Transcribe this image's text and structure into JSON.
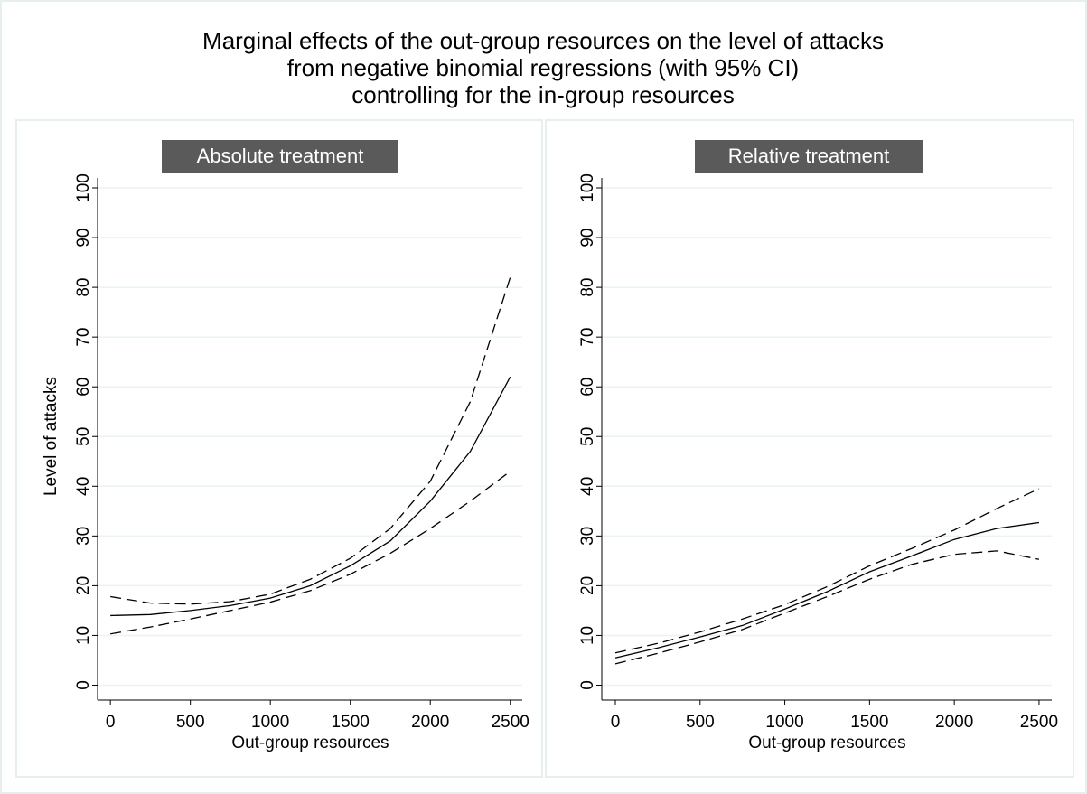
{
  "title": [
    "Marginal effects of the out-group resources on the level of attacks",
    "from negative binomial regressions (with 95% CI)",
    "controlling for the in-group resources"
  ],
  "chart_data": [
    {
      "type": "line",
      "header": "Absolute treatment",
      "x_label": "Out-group resources",
      "y_label": "Level of attacks",
      "x": [
        0,
        250,
        500,
        750,
        1000,
        1250,
        1500,
        1750,
        2000,
        2250,
        2500
      ],
      "series": [
        {
          "color": "#000000",
          "style": "solid",
          "values": [
            14,
            14.2,
            15,
            16,
            17.5,
            20,
            24,
            29,
            37,
            47,
            62
          ]
        },
        {
          "color": "#000000",
          "style": "dashed",
          "values": [
            17.8,
            16.5,
            16.3,
            16.8,
            18.3,
            21.3,
            25.5,
            31.5,
            41,
            57,
            82
          ]
        },
        {
          "color": "#000000",
          "style": "dashed",
          "values": [
            10.3,
            11.7,
            13.3,
            15,
            16.7,
            19,
            22.3,
            26.5,
            31.5,
            37,
            43
          ]
        }
      ],
      "xlim": [
        -80,
        2575
      ],
      "xticks": [
        0,
        500,
        1000,
        1500,
        2000,
        2500
      ],
      "ylim": [
        -3,
        102
      ],
      "yticks": [
        0,
        10,
        20,
        30,
        40,
        50,
        60,
        70,
        80,
        90,
        100
      ],
      "grid": true
    },
    {
      "type": "line",
      "header": "Relative treatment",
      "x_label": "Out-group resources",
      "x": [
        0,
        250,
        500,
        750,
        1000,
        1250,
        1500,
        1750,
        2000,
        2250,
        2500
      ],
      "series": [
        {
          "color": "#000000",
          "style": "solid",
          "values": [
            5.5,
            7.5,
            9.7,
            12,
            15.3,
            18.8,
            22.8,
            26,
            29.3,
            31.5,
            32.7
          ]
        },
        {
          "color": "#000000",
          "style": "dashed",
          "values": [
            6.5,
            8.4,
            10.7,
            13.3,
            16.2,
            19.8,
            24,
            27.5,
            31.2,
            35.5,
            39.5
          ]
        },
        {
          "color": "#000000",
          "style": "dashed",
          "values": [
            4.3,
            6.4,
            8.7,
            11.2,
            14.5,
            17.8,
            21.3,
            24.3,
            26.3,
            27,
            25.3
          ]
        }
      ],
      "xlim": [
        -80,
        2575
      ],
      "xticks": [
        0,
        500,
        1000,
        1500,
        2000,
        2500
      ],
      "ylim": [
        -3,
        102
      ],
      "yticks": [
        0,
        10,
        20,
        30,
        40,
        50,
        60,
        70,
        80,
        90,
        100
      ],
      "grid": true
    }
  ]
}
